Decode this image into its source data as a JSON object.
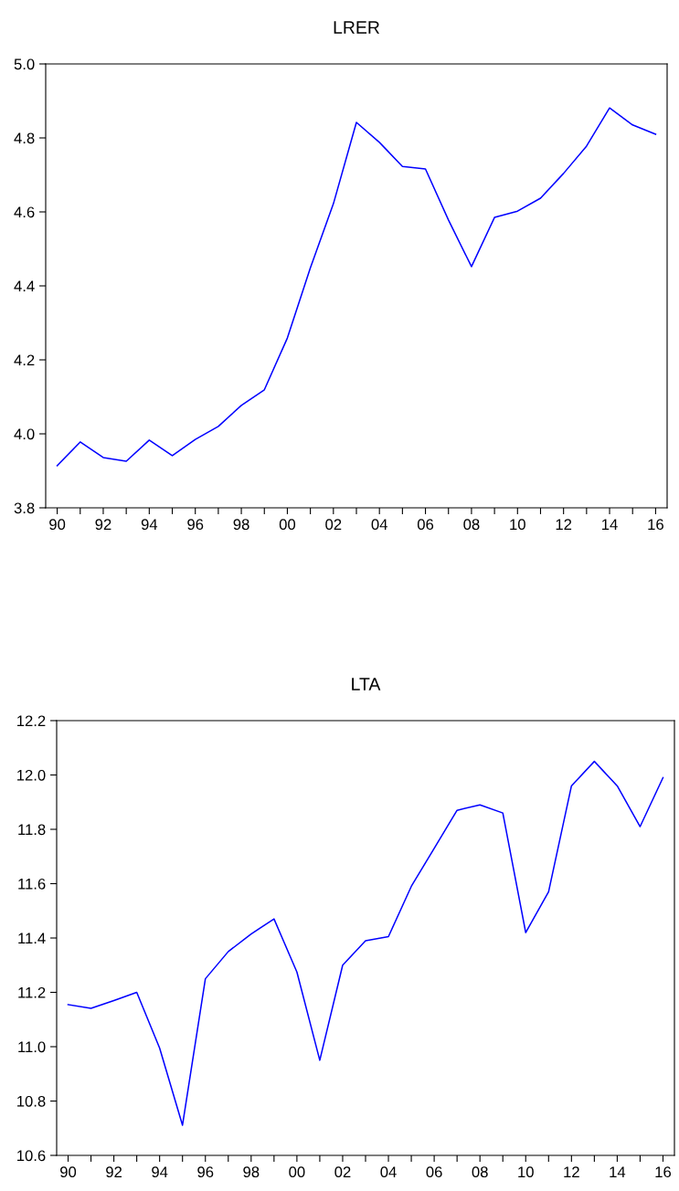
{
  "chart_data": [
    {
      "type": "line",
      "title": "LRER",
      "x": [
        1990,
        1991,
        1992,
        1993,
        1994,
        1995,
        1996,
        1997,
        1998,
        1999,
        2000,
        2001,
        2002,
        2003,
        2004,
        2005,
        2006,
        2007,
        2008,
        2009,
        2010,
        2011,
        2012,
        2013,
        2014,
        2015,
        2016
      ],
      "series": [
        {
          "color": "#0000ff",
          "values": [
            3.914,
            3.978,
            3.936,
            3.926,
            3.983,
            3.941,
            3.985,
            4.02,
            4.077,
            4.119,
            4.259,
            4.449,
            4.622,
            4.842,
            4.788,
            4.723,
            4.716,
            4.578,
            4.452,
            4.585,
            4.602,
            4.637,
            4.704,
            4.778,
            4.881,
            4.835,
            4.81
          ]
        }
      ],
      "xlim": [
        1989.5,
        2016.5
      ],
      "xticks": [
        {
          "value": 1990,
          "label": "90"
        },
        {
          "value": 1991,
          "label": null
        },
        {
          "value": 1992,
          "label": "92"
        },
        {
          "value": 1993,
          "label": null
        },
        {
          "value": 1994,
          "label": "94"
        },
        {
          "value": 1995,
          "label": null
        },
        {
          "value": 1996,
          "label": "96"
        },
        {
          "value": 1997,
          "label": null
        },
        {
          "value": 1998,
          "label": "98"
        },
        {
          "value": 1999,
          "label": null
        },
        {
          "value": 2000,
          "label": "00"
        },
        {
          "value": 2001,
          "label": null
        },
        {
          "value": 2002,
          "label": "02"
        },
        {
          "value": 2003,
          "label": null
        },
        {
          "value": 2004,
          "label": "04"
        },
        {
          "value": 2005,
          "label": null
        },
        {
          "value": 2006,
          "label": "06"
        },
        {
          "value": 2007,
          "label": null
        },
        {
          "value": 2008,
          "label": "08"
        },
        {
          "value": 2009,
          "label": null
        },
        {
          "value": 2010,
          "label": "10"
        },
        {
          "value": 2011,
          "label": null
        },
        {
          "value": 2012,
          "label": "12"
        },
        {
          "value": 2013,
          "label": null
        },
        {
          "value": 2014,
          "label": "14"
        },
        {
          "value": 2015,
          "label": null
        },
        {
          "value": 2016,
          "label": "16"
        }
      ],
      "ylim": [
        3.8,
        5.0
      ],
      "yticks": [
        {
          "value": 3.8,
          "label": "3.8"
        },
        {
          "value": 4.0,
          "label": "4.0"
        },
        {
          "value": 4.2,
          "label": "4.2"
        },
        {
          "value": 4.4,
          "label": "4.4"
        },
        {
          "value": 4.6,
          "label": "4.6"
        },
        {
          "value": 4.8,
          "label": "4.8"
        },
        {
          "value": 5.0,
          "label": "5.0"
        }
      ],
      "grid": false,
      "legend": false
    },
    {
      "type": "line",
      "title": "LTA",
      "x": [
        1990,
        1991,
        1992,
        1993,
        1994,
        1995,
        1996,
        1997,
        1998,
        1999,
        2000,
        2001,
        2002,
        2003,
        2004,
        2005,
        2006,
        2007,
        2008,
        2009,
        2010,
        2011,
        2012,
        2013,
        2014,
        2015,
        2016
      ],
      "series": [
        {
          "color": "#0000ff",
          "values": [
            11.155,
            11.141,
            11.17,
            11.2,
            10.995,
            10.711,
            11.25,
            11.35,
            11.415,
            11.47,
            11.275,
            10.95,
            11.3,
            11.39,
            11.405,
            11.59,
            11.73,
            11.87,
            11.89,
            11.86,
            11.42,
            11.57,
            11.96,
            12.05,
            11.96,
            11.81,
            11.99
          ]
        }
      ],
      "xlim": [
        1989.5,
        2016.5
      ],
      "xticks": [
        {
          "value": 1990,
          "label": "90"
        },
        {
          "value": 1991,
          "label": null
        },
        {
          "value": 1992,
          "label": "92"
        },
        {
          "value": 1993,
          "label": null
        },
        {
          "value": 1994,
          "label": "94"
        },
        {
          "value": 1995,
          "label": null
        },
        {
          "value": 1996,
          "label": "96"
        },
        {
          "value": 1997,
          "label": null
        },
        {
          "value": 1998,
          "label": "98"
        },
        {
          "value": 1999,
          "label": null
        },
        {
          "value": 2000,
          "label": "00"
        },
        {
          "value": 2001,
          "label": null
        },
        {
          "value": 2002,
          "label": "02"
        },
        {
          "value": 2003,
          "label": null
        },
        {
          "value": 2004,
          "label": "04"
        },
        {
          "value": 2005,
          "label": null
        },
        {
          "value": 2006,
          "label": "06"
        },
        {
          "value": 2007,
          "label": null
        },
        {
          "value": 2008,
          "label": "08"
        },
        {
          "value": 2009,
          "label": null
        },
        {
          "value": 2010,
          "label": "10"
        },
        {
          "value": 2011,
          "label": null
        },
        {
          "value": 2012,
          "label": "12"
        },
        {
          "value": 2013,
          "label": null
        },
        {
          "value": 2014,
          "label": "14"
        },
        {
          "value": 2015,
          "label": null
        },
        {
          "value": 2016,
          "label": "16"
        }
      ],
      "ylim": [
        10.6,
        12.2
      ],
      "yticks": [
        {
          "value": 10.6,
          "label": "10.6"
        },
        {
          "value": 10.8,
          "label": "10.8"
        },
        {
          "value": 11.0,
          "label": "11.0"
        },
        {
          "value": 11.2,
          "label": "11.2"
        },
        {
          "value": 11.4,
          "label": "11.4"
        },
        {
          "value": 11.6,
          "label": "11.6"
        },
        {
          "value": 11.8,
          "label": "11.8"
        },
        {
          "value": 12.0,
          "label": "12.0"
        },
        {
          "value": 12.2,
          "label": "12.2"
        }
      ],
      "grid": false,
      "legend": false
    }
  ]
}
